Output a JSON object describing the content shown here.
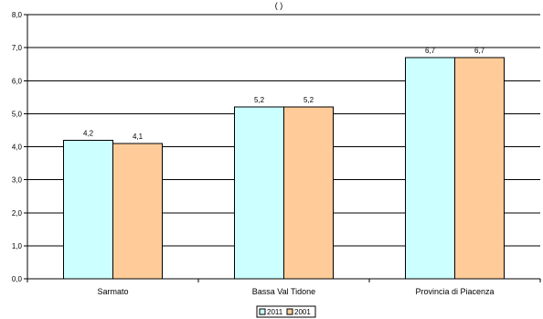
{
  "chart_data": {
    "type": "bar",
    "categories": [
      "Sarmato",
      "Bassa Val Tidone",
      "Provincia di Piacenza"
    ],
    "series": [
      {
        "name": "2011",
        "values": [
          4.2,
          5.2,
          6.7
        ],
        "labels": [
          "4,2",
          "5,2",
          "6,7"
        ],
        "color": "#CCFFFF"
      },
      {
        "name": "2001",
        "values": [
          4.1,
          5.2,
          6.7
        ],
        "labels": [
          "4,1",
          "5,2",
          "6,7"
        ],
        "color": "#FFCC99"
      }
    ],
    "ylim": [
      0,
      8
    ],
    "yticks": [
      "0,0",
      "1,0",
      "2,0",
      "3,0",
      "4,0",
      "5,0",
      "6,0",
      "7,0",
      "8,0"
    ],
    "title_fragment": "(                                                    )",
    "grid": true,
    "legend_position": "bottom"
  }
}
